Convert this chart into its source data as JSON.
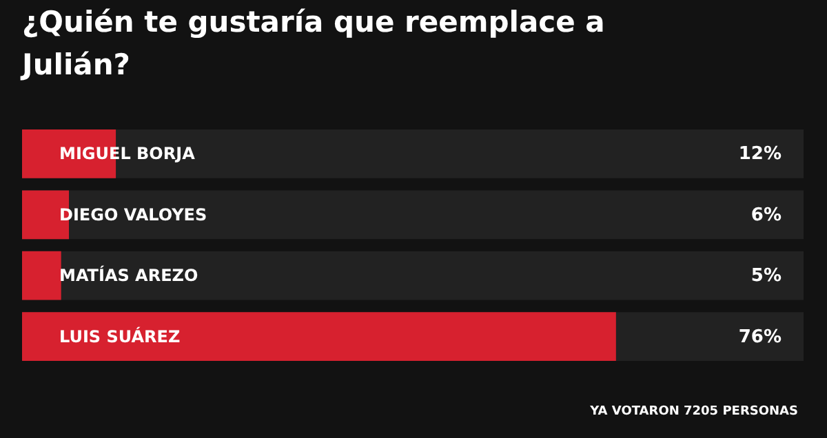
{
  "chart_data": {
    "type": "bar",
    "orientation": "horizontal",
    "title": "¿Quién te gustaría que reemplace a Julián?",
    "categories": [
      "MIGUEL BORJA",
      "DIEGO VALOYES",
      "MATÍAS AREZO",
      "LUIS SUÁREZ"
    ],
    "values": [
      12,
      6,
      5,
      76
    ],
    "value_labels": [
      "12%",
      "6%",
      "5%",
      "76%"
    ],
    "color": "#d7212f",
    "xlim": [
      0,
      100
    ],
    "annotations": [
      "YA VOTARON 7205 PERSONAS"
    ]
  }
}
